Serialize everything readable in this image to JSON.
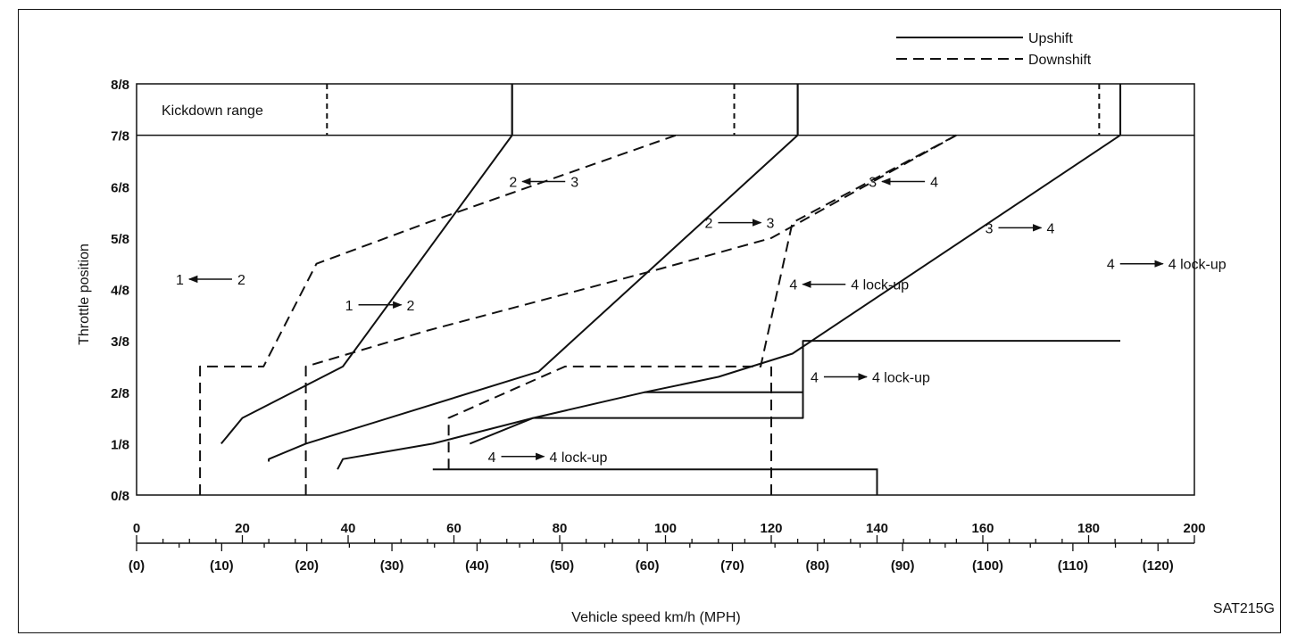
{
  "chart_data": {
    "type": "line",
    "figure_id": "SAT215G",
    "xlabel": "Vehicle speed km/h (MPH)",
    "ylabel": "Throttle position",
    "xlim": [
      0,
      200
    ],
    "ylim": [
      0,
      8
    ],
    "x_ticks_kmh": [
      "0",
      "20",
      "40",
      "60",
      "80",
      "100",
      "120",
      "140",
      "160",
      "180",
      "200"
    ],
    "x_ticks_mph": [
      "(0)",
      "(10)",
      "(20)",
      "(30)",
      "(40)",
      "(50)",
      "(60)",
      "(70)",
      "(80)",
      "(90)",
      "(100)",
      "(110)",
      "(120)"
    ],
    "y_ticks": [
      "0/8",
      "1/8",
      "2/8",
      "3/8",
      "4/8",
      "5/8",
      "6/8",
      "7/8",
      "8/8"
    ],
    "legend": {
      "position": "top-right",
      "items": [
        {
          "label": "Upshift",
          "style": "solid"
        },
        {
          "label": "Downshift",
          "style": "dashed"
        }
      ]
    },
    "kickdown_label": "Kickdown range",
    "series": [
      {
        "name": "1 → 2",
        "style": "solid",
        "points": [
          [
            16,
            1
          ],
          [
            20,
            1.5
          ],
          [
            39,
            2.5
          ],
          [
            71,
            7
          ],
          [
            71,
            8
          ]
        ]
      },
      {
        "name": "2 → 3",
        "style": "solid",
        "points": [
          [
            25,
            0.65
          ],
          [
            25,
            0.7
          ],
          [
            32,
            1
          ],
          [
            76,
            2.4
          ],
          [
            125,
            7
          ],
          [
            125,
            8
          ]
        ]
      },
      {
        "name": "3 → 4",
        "style": "solid",
        "points": [
          [
            38,
            0.5
          ],
          [
            39,
            0.7
          ],
          [
            56,
            1
          ],
          [
            75,
            1.5
          ],
          [
            96,
            2
          ],
          [
            110,
            2.3
          ],
          [
            124,
            2.75
          ],
          [
            186,
            7
          ],
          [
            186,
            8
          ]
        ]
      },
      {
        "name": "2 → 1",
        "style": "dashed",
        "points": [
          [
            12,
            0
          ],
          [
            12,
            2.5
          ],
          [
            24,
            2.5
          ],
          [
            34,
            4.5
          ],
          [
            55,
            5.3
          ],
          [
            102,
            7
          ]
        ]
      },
      {
        "name": "3 → 2",
        "style": "dashed",
        "points": [
          [
            32,
            0
          ],
          [
            32,
            2.5
          ],
          [
            55,
            3.2
          ],
          [
            99,
            4.4
          ],
          [
            120,
            5
          ],
          [
            155,
            7
          ]
        ]
      },
      {
        "name": "4 → 3",
        "style": "dashed",
        "points": [
          [
            59,
            0.5
          ],
          [
            59,
            1.5
          ],
          [
            81,
            2.5
          ],
          [
            118,
            2.5
          ],
          [
            124,
            5.3
          ],
          [
            155,
            7
          ]
        ]
      },
      {
        "name": "4 lock-up",
        "style": "solid",
        "points": [
          [
            63,
            1
          ],
          [
            75,
            1.5
          ],
          [
            126,
            1.5
          ],
          [
            126,
            3
          ],
          [
            186,
            3
          ]
        ]
      },
      {
        "name": "4 lock-up release",
        "style": "dashed",
        "points": [
          [
            120,
            0
          ],
          [
            120,
            2.5
          ]
        ]
      }
    ],
    "annotations": [
      {
        "text_from": "1",
        "text_to": "2",
        "arrow": "left",
        "x": 14,
        "y": 4.2
      },
      {
        "text_from": "1",
        "text_to": "2",
        "arrow": "right",
        "x": 46,
        "y": 3.7
      },
      {
        "text_from": "2",
        "text_to": "3",
        "arrow": "left",
        "x": 77,
        "y": 6.1
      },
      {
        "text_from": "2",
        "text_to": "3",
        "arrow": "right",
        "x": 114,
        "y": 5.3
      },
      {
        "text_from": "3",
        "text_to": "4",
        "arrow": "left",
        "x": 145,
        "y": 6.1
      },
      {
        "text_from": "3",
        "text_to": "4",
        "arrow": "right",
        "x": 167,
        "y": 5.2
      },
      {
        "text_from": "4",
        "text_to": "4 lock-up",
        "arrow": "left",
        "x": 130,
        "y": 4.1
      },
      {
        "text_from": "4",
        "text_to": "4 lock-up",
        "arrow": "right",
        "x": 134,
        "y": 2.3
      },
      {
        "text_from": "4",
        "text_to": "4 lock-up",
        "arrow": "right",
        "x": 73,
        "y": 0.75
      },
      {
        "text_from": "4",
        "text_to": "4 lock-up",
        "arrow": "right",
        "x": 190,
        "y": 4.5
      }
    ]
  }
}
